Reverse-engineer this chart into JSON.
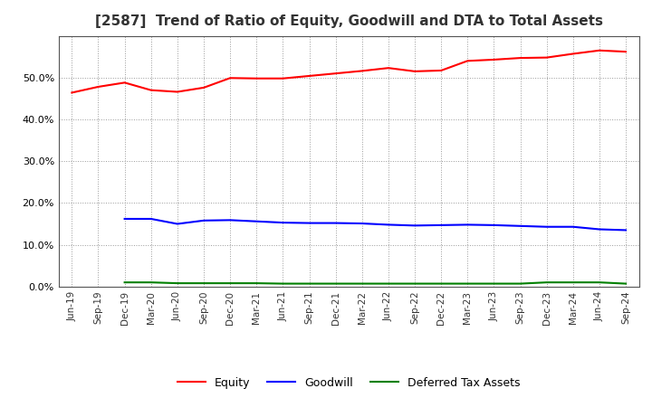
{
  "title": "[2587]  Trend of Ratio of Equity, Goodwill and DTA to Total Assets",
  "x_labels": [
    "Jun-19",
    "Sep-19",
    "Dec-19",
    "Mar-20",
    "Jun-20",
    "Sep-20",
    "Dec-20",
    "Mar-21",
    "Jun-21",
    "Sep-21",
    "Dec-21",
    "Mar-22",
    "Jun-22",
    "Sep-22",
    "Dec-22",
    "Mar-23",
    "Jun-23",
    "Sep-23",
    "Dec-23",
    "Mar-24",
    "Jun-24",
    "Sep-24"
  ],
  "equity": [
    0.464,
    0.478,
    0.488,
    0.47,
    0.466,
    0.476,
    0.499,
    0.498,
    0.498,
    0.504,
    0.51,
    0.516,
    0.523,
    0.515,
    0.517,
    0.54,
    0.543,
    0.547,
    0.548,
    0.557,
    0.565,
    0.562
  ],
  "goodwill": [
    0.0,
    0.0,
    0.162,
    0.162,
    0.15,
    0.158,
    0.159,
    0.156,
    0.153,
    0.152,
    0.152,
    0.151,
    0.148,
    0.146,
    0.147,
    0.148,
    0.147,
    0.145,
    0.143,
    0.143,
    0.137,
    0.135
  ],
  "dta": [
    0.0,
    0.0,
    0.01,
    0.01,
    0.008,
    0.008,
    0.008,
    0.008,
    0.007,
    0.007,
    0.007,
    0.007,
    0.007,
    0.007,
    0.007,
    0.007,
    0.007,
    0.007,
    0.01,
    0.01,
    0.01,
    0.007
  ],
  "equity_color": "#FF0000",
  "goodwill_color": "#0000FF",
  "dta_color": "#008000",
  "ylim": [
    0.0,
    0.6
  ],
  "yticks": [
    0.0,
    0.1,
    0.2,
    0.3,
    0.4,
    0.5
  ],
  "background_color": "#FFFFFF",
  "plot_bg_color": "#FFFFFF",
  "grid_color": "#999999",
  "title_fontsize": 11,
  "legend_labels": [
    "Equity",
    "Goodwill",
    "Deferred Tax Assets"
  ]
}
